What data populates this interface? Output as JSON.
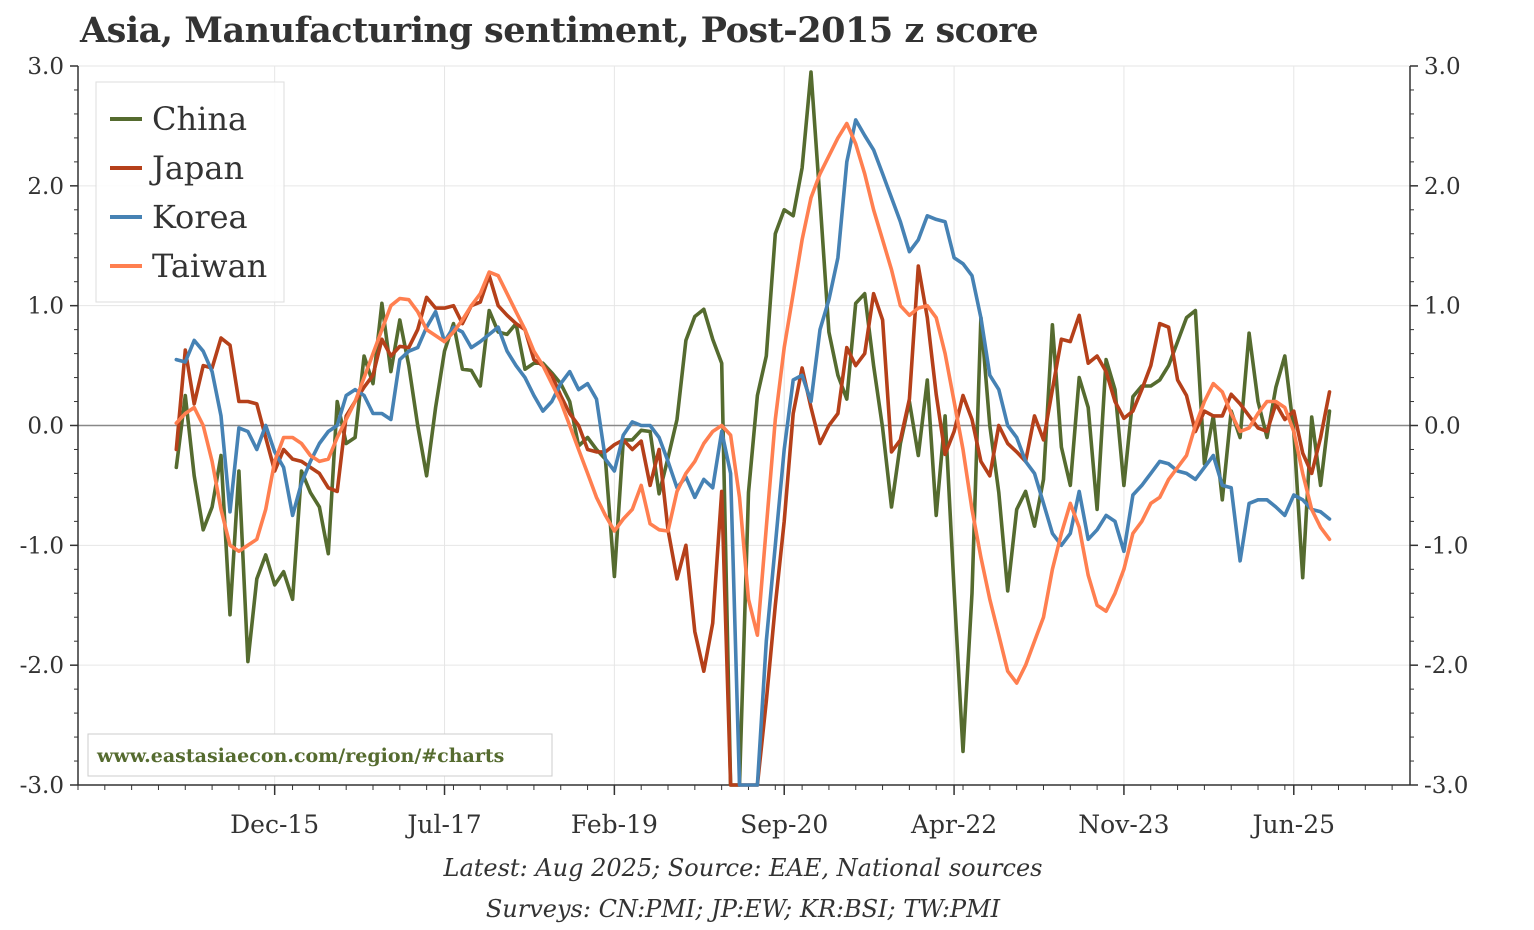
{
  "title": "Asia, Manufacturing sentiment, Post-2015 z score",
  "notes": {
    "latest": "Latest: Aug 2025; Source: EAE, National sources",
    "surveys": "Surveys: CN:PMI; JP:EW; KR:BSI; TW:PMI"
  },
  "watermark": "www.eastasiaecon.com/region/#charts",
  "chart_data": {
    "type": "line",
    "x_start": "2015-01",
    "x_end": "2025-08",
    "xlim": [
      "2014-02",
      "2026-07"
    ],
    "x_ticks": [
      "Dec-15",
      "Jul-17",
      "Feb-19",
      "Sep-20",
      "Apr-22",
      "Nov-23",
      "Jun-25"
    ],
    "ylim": [
      -3.0,
      3.0
    ],
    "y_ticks": [
      "3.0",
      "2.0",
      "1.0",
      "0.0",
      "-1.0",
      "-2.0",
      "-3.0"
    ],
    "y_ticks_right": [
      "3.0",
      "2.0",
      "1.0",
      "0.0",
      "-1.0",
      "-2.0",
      "-3.0"
    ],
    "grid": true,
    "zero_line": true,
    "legend": "top-left",
    "series": [
      {
        "name": "China",
        "color": "#556b2f",
        "values": [
          -0.35,
          0.25,
          -0.42,
          -0.87,
          -0.68,
          -0.25,
          -1.58,
          -0.38,
          -1.97,
          -1.28,
          -1.08,
          -1.33,
          -1.22,
          -1.45,
          -0.38,
          -0.56,
          -0.68,
          -1.07,
          0.2,
          -0.15,
          -0.1,
          0.58,
          0.35,
          1.02,
          0.45,
          0.88,
          0.5,
          0.0,
          -0.42,
          0.15,
          0.62,
          0.85,
          0.47,
          0.46,
          0.33,
          0.96,
          0.78,
          0.76,
          0.85,
          0.47,
          0.52,
          0.52,
          0.44,
          0.35,
          0.2,
          -0.17,
          -0.1,
          -0.2,
          -0.28,
          -1.26,
          -0.12,
          -0.12,
          -0.04,
          -0.05,
          -0.57,
          -0.27,
          0.05,
          0.71,
          0.91,
          0.97,
          0.72,
          0.52,
          -3.0,
          -3.0,
          -0.56,
          0.25,
          0.58,
          1.6,
          1.8,
          1.75,
          2.15,
          2.95,
          1.88,
          0.78,
          0.42,
          0.22,
          1.02,
          1.1,
          0.5,
          -0.02,
          -0.68,
          -0.15,
          0.2,
          -0.25,
          0.38,
          -0.75,
          0.08,
          -1.37,
          -2.72,
          -1.4,
          0.9,
          0.0,
          -0.56,
          -1.38,
          -0.7,
          -0.55,
          -0.84,
          -0.45,
          0.84,
          -0.18,
          -0.5,
          0.4,
          0.15,
          -0.7,
          0.55,
          0.3,
          -0.5,
          0.24,
          0.33,
          0.33,
          0.38,
          0.5,
          0.7,
          0.9,
          0.96,
          -0.32,
          0.08,
          -0.62,
          0.12,
          -0.1,
          0.77,
          0.2,
          -0.1,
          0.32,
          0.58,
          -0.05,
          -1.27,
          0.07,
          -0.5,
          0.12
        ]
      },
      {
        "name": "Japan",
        "color": "#b5401a",
        "values": [
          -0.2,
          0.63,
          0.18,
          0.5,
          0.48,
          0.73,
          0.67,
          0.2,
          0.2,
          0.18,
          -0.1,
          -0.38,
          -0.2,
          -0.28,
          -0.3,
          -0.35,
          -0.4,
          -0.52,
          -0.55,
          0.08,
          0.2,
          0.32,
          0.42,
          0.72,
          0.58,
          0.66,
          0.65,
          0.8,
          1.07,
          0.98,
          0.98,
          1.0,
          0.85,
          1.0,
          1.03,
          1.25,
          1.0,
          0.92,
          0.85,
          0.8,
          0.55,
          0.5,
          0.42,
          0.25,
          0.1,
          0.0,
          -0.2,
          -0.22,
          -0.22,
          -0.16,
          -0.12,
          -0.2,
          -0.13,
          -0.5,
          -0.2,
          -0.87,
          -1.28,
          -1.0,
          -1.72,
          -2.05,
          -1.65,
          -0.55,
          -3.0,
          -3.0,
          -3.0,
          -3.0,
          -2.3,
          -1.5,
          -0.8,
          0.1,
          0.48,
          0.15,
          -0.15,
          0.0,
          0.1,
          0.65,
          0.5,
          0.6,
          1.1,
          0.88,
          -0.22,
          -0.12,
          0.22,
          1.33,
          0.9,
          0.26,
          -0.24,
          -0.05,
          0.25,
          0.05,
          -0.3,
          -0.42,
          0.0,
          -0.15,
          -0.22,
          -0.3,
          0.08,
          -0.12,
          0.3,
          0.72,
          0.7,
          0.92,
          0.52,
          0.58,
          0.45,
          0.2,
          0.06,
          0.12,
          0.3,
          0.5,
          0.85,
          0.82,
          0.38,
          0.25,
          -0.05,
          0.12,
          0.08,
          0.08,
          0.26,
          0.18,
          0.08,
          -0.02,
          -0.05,
          0.18,
          0.05,
          0.12,
          -0.23,
          -0.4,
          -0.1,
          0.28
        ]
      },
      {
        "name": "Korea",
        "color": "#4682b4",
        "values": [
          0.55,
          0.53,
          0.71,
          0.62,
          0.45,
          0.08,
          -0.72,
          -0.02,
          -0.05,
          -0.2,
          0.0,
          -0.22,
          -0.35,
          -0.75,
          -0.48,
          -0.3,
          -0.15,
          -0.05,
          0.0,
          0.25,
          0.3,
          0.25,
          0.1,
          0.1,
          0.05,
          0.55,
          0.62,
          0.65,
          0.82,
          0.95,
          0.7,
          0.82,
          0.78,
          0.65,
          0.7,
          0.76,
          0.82,
          0.62,
          0.5,
          0.4,
          0.25,
          0.12,
          0.2,
          0.35,
          0.45,
          0.3,
          0.35,
          0.22,
          -0.28,
          -0.38,
          -0.08,
          0.03,
          0.0,
          0.0,
          -0.1,
          -0.3,
          -0.52,
          -0.43,
          -0.6,
          -0.45,
          -0.52,
          -0.05,
          -0.4,
          -3.0,
          -3.0,
          -3.0,
          -1.8,
          -1.0,
          -0.2,
          0.38,
          0.42,
          0.2,
          0.8,
          1.05,
          1.4,
          2.2,
          2.55,
          2.42,
          2.3,
          2.1,
          1.9,
          1.7,
          1.45,
          1.55,
          1.75,
          1.72,
          1.7,
          1.4,
          1.35,
          1.25,
          0.9,
          0.42,
          0.3,
          0.0,
          -0.1,
          -0.3,
          -0.4,
          -0.65,
          -0.9,
          -1.0,
          -0.9,
          -0.55,
          -0.95,
          -0.87,
          -0.75,
          -0.8,
          -1.05,
          -0.58,
          -0.5,
          -0.4,
          -0.3,
          -0.32,
          -0.38,
          -0.4,
          -0.45,
          -0.35,
          -0.25,
          -0.5,
          -0.52,
          -1.13,
          -0.65,
          -0.62,
          -0.62,
          -0.68,
          -0.75,
          -0.58,
          -0.62,
          -0.7,
          -0.72,
          -0.78
        ]
      },
      {
        "name": "Taiwan",
        "color": "#ff7f50",
        "values": [
          0.02,
          0.1,
          0.15,
          0.0,
          -0.3,
          -0.7,
          -1.0,
          -1.05,
          -1.0,
          -0.95,
          -0.7,
          -0.3,
          -0.1,
          -0.1,
          -0.15,
          -0.25,
          -0.3,
          -0.28,
          -0.1,
          0.05,
          0.2,
          0.4,
          0.6,
          0.8,
          1.0,
          1.06,
          1.05,
          0.95,
          0.8,
          0.75,
          0.7,
          0.78,
          0.88,
          1.0,
          1.1,
          1.28,
          1.25,
          1.1,
          0.95,
          0.8,
          0.62,
          0.5,
          0.35,
          0.2,
          0.0,
          -0.2,
          -0.4,
          -0.6,
          -0.75,
          -0.88,
          -0.78,
          -0.7,
          -0.5,
          -0.82,
          -0.87,
          -0.88,
          -0.55,
          -0.4,
          -0.3,
          -0.15,
          -0.05,
          0.0,
          -0.08,
          -0.6,
          -1.45,
          -1.75,
          -0.85,
          0.05,
          0.65,
          1.1,
          1.55,
          1.9,
          2.1,
          2.25,
          2.4,
          2.52,
          2.35,
          2.1,
          1.8,
          1.55,
          1.3,
          1.0,
          0.92,
          0.98,
          1.0,
          0.9,
          0.6,
          0.2,
          -0.2,
          -0.7,
          -1.1,
          -1.45,
          -1.75,
          -2.05,
          -2.15,
          -2.0,
          -1.8,
          -1.6,
          -1.2,
          -0.9,
          -0.65,
          -0.85,
          -1.25,
          -1.5,
          -1.55,
          -1.4,
          -1.2,
          -0.9,
          -0.8,
          -0.65,
          -0.6,
          -0.45,
          -0.35,
          -0.25,
          0.0,
          0.2,
          0.35,
          0.28,
          0.1,
          -0.05,
          -0.02,
          0.1,
          0.2,
          0.2,
          0.15,
          -0.05,
          -0.4,
          -0.7,
          -0.85,
          -0.95
        ]
      }
    ]
  }
}
